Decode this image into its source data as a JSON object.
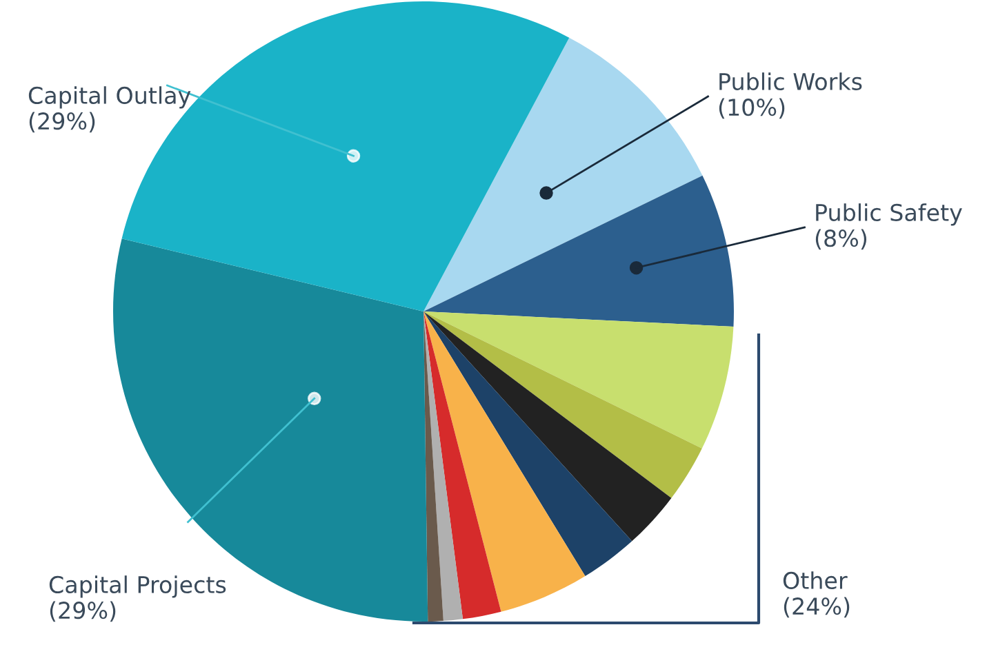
{
  "chart_data": {
    "type": "pie",
    "categories": [
      "Public Works\n(10%)",
      "Public Safety\n(8%)",
      null,
      null,
      null,
      null,
      null,
      null,
      null,
      null,
      "Capital Projects\n(29%)",
      "Capital Outlay\n(29%)"
    ],
    "values": [
      10,
      8,
      6.5,
      3,
      3,
      3,
      4.7,
      2,
      1,
      0.8,
      29,
      29
    ],
    "colors": [
      "#a8d8f0",
      "#2c5f8e",
      "#c8df6e",
      "#b3be47",
      "#222222",
      "#1d4268",
      "#f8b24a",
      "#d62b2b",
      "#b0b0b0",
      "#6a5a4c",
      "#17899a",
      "#1ab3c8"
    ],
    "annotations": [
      "Other\n(24%)"
    ]
  }
}
